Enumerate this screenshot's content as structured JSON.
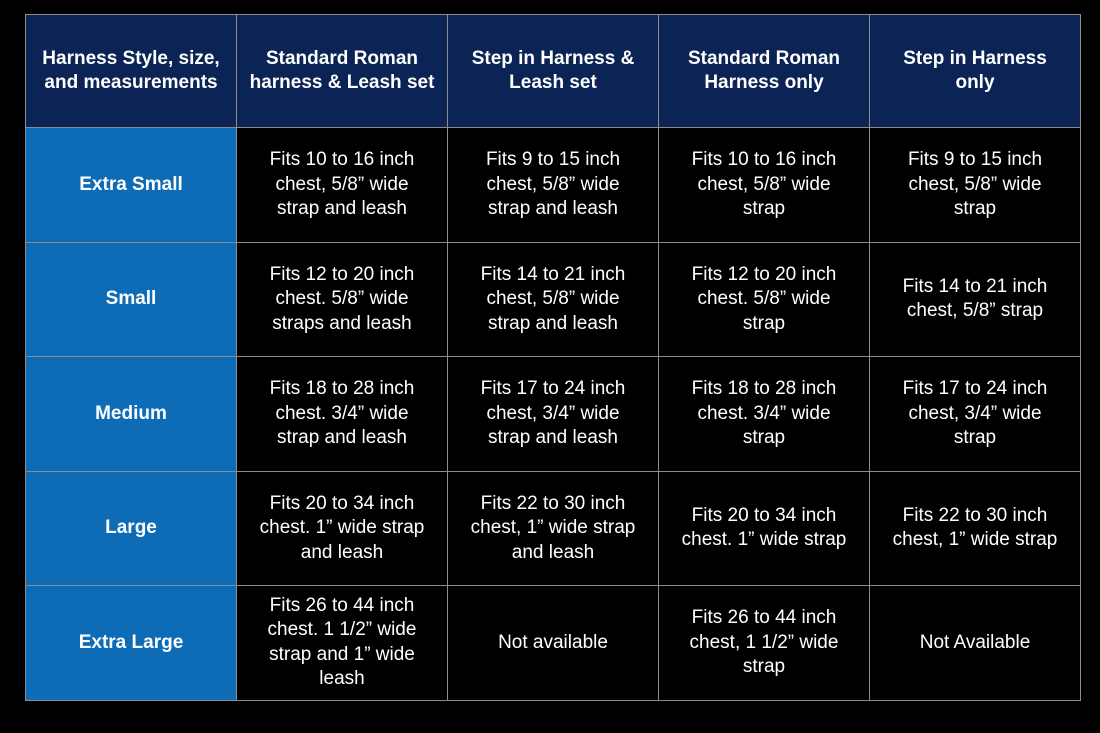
{
  "colors": {
    "header_bg": "#0b2455",
    "size_column_bg": "#0e6cb6",
    "cell_bg": "#000000",
    "border": "#8d8d8d",
    "text": "#ffffff"
  },
  "headers": [
    "Harness Style, size,\nand measurements",
    "Standard Roman\nharness & Leash set",
    "Step in Harness &\nLeash set",
    "Standard Roman\nHarness only",
    "Step in Harness\nonly"
  ],
  "rows": [
    {
      "size": "Extra Small",
      "cells": [
        "Fits 10 to 16 inch\nchest, 5/8” wide\nstrap and leash",
        "Fits 9 to 15 inch\nchest, 5/8” wide\nstrap and leash",
        "Fits 10 to 16 inch\nchest, 5/8” wide\nstrap",
        "Fits 9 to 15 inch\nchest, 5/8” wide\nstrap"
      ]
    },
    {
      "size": "Small",
      "cells": [
        "Fits 12 to 20 inch\nchest. 5/8” wide\nstraps and leash",
        "Fits 14 to 21 inch\nchest, 5/8” wide\nstrap and leash",
        "Fits 12 to 20 inch\nchest. 5/8” wide\nstrap",
        "Fits 14 to 21 inch\nchest, 5/8” strap"
      ]
    },
    {
      "size": "Medium",
      "cells": [
        "Fits 18 to 28 inch\nchest. 3/4” wide\nstrap and leash",
        "Fits 17 to 24 inch\nchest, 3/4” wide\nstrap and leash",
        "Fits 18 to 28 inch\nchest. 3/4” wide\nstrap",
        "Fits 17 to 24 inch\nchest, 3/4” wide\nstrap"
      ]
    },
    {
      "size": "Large",
      "cells": [
        "Fits 20 to 34 inch\nchest. 1” wide strap\nand leash",
        "Fits 22 to 30 inch\nchest, 1” wide strap\nand leash",
        "Fits 20 to 34 inch\nchest. 1” wide strap",
        "Fits 22 to 30 inch\nchest, 1” wide strap"
      ]
    },
    {
      "size": "Extra Large",
      "cells": [
        "Fits 26 to 44 inch\nchest. 1 1/2” wide\nstrap and 1” wide\nleash",
        "Not available",
        "Fits 26 to 44 inch\nchest, 1 1/2” wide\nstrap",
        "Not Available"
      ]
    }
  ]
}
